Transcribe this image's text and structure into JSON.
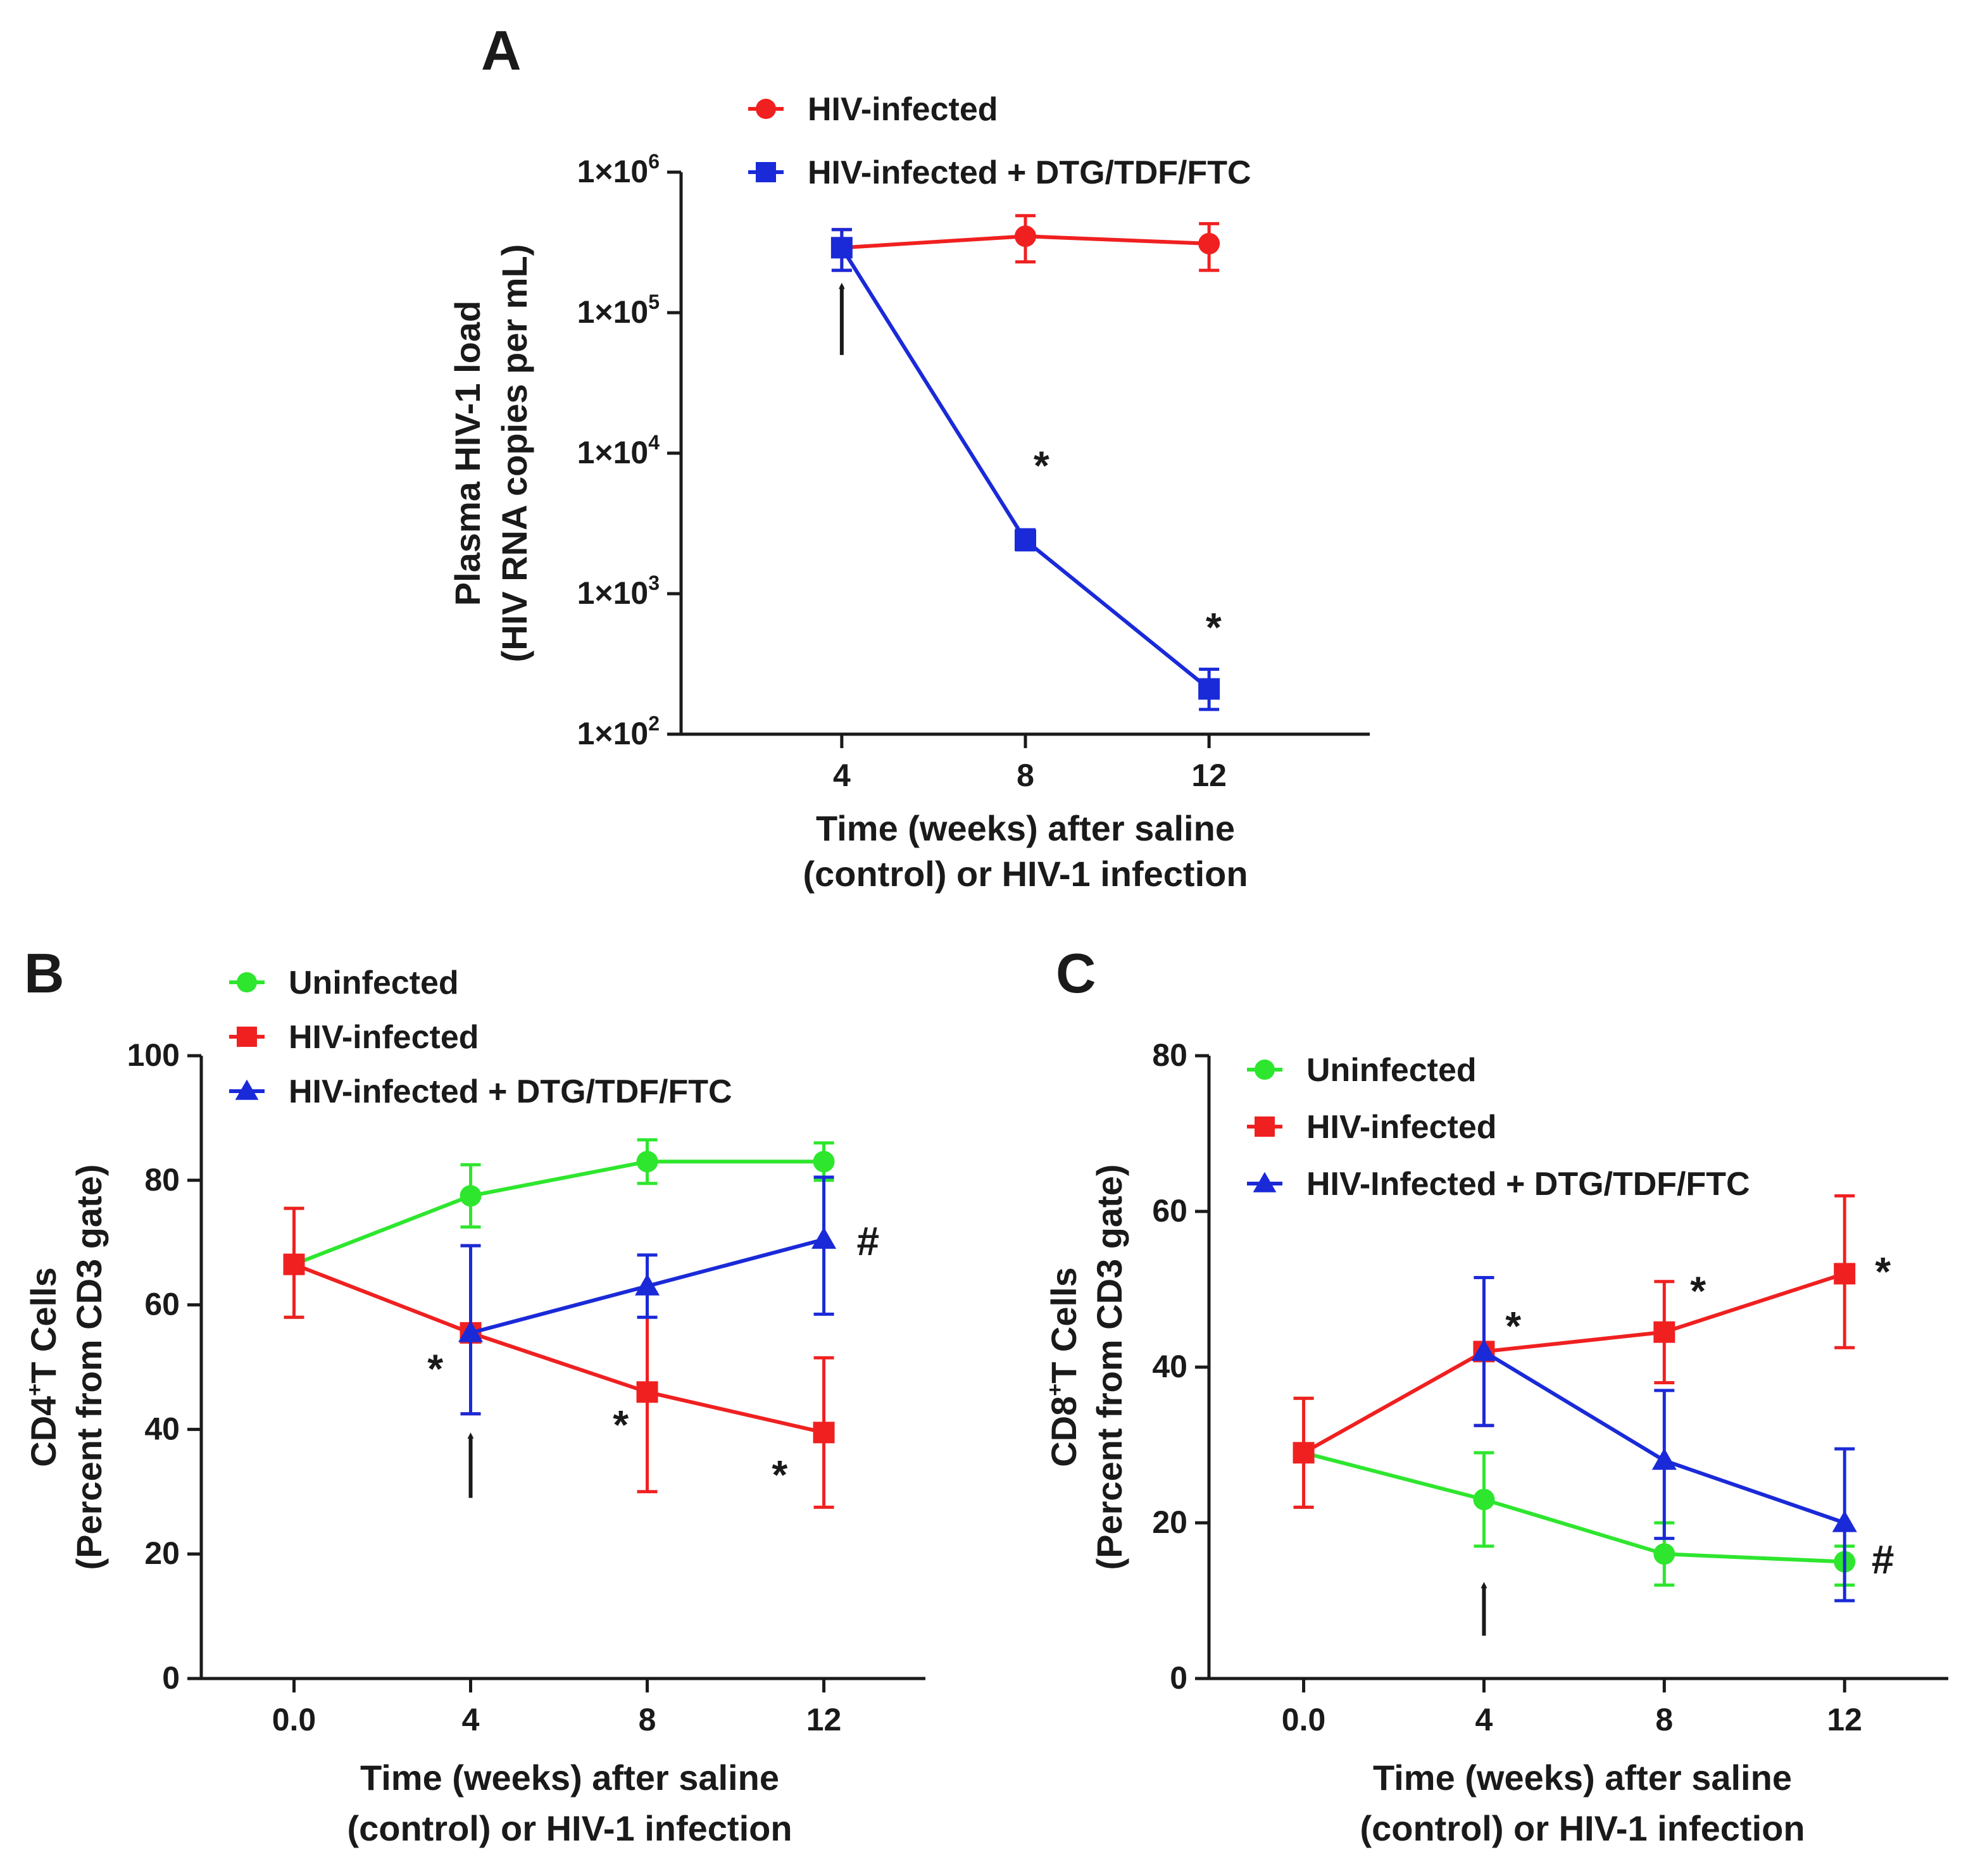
{
  "colors": {
    "green": "#2ee62e",
    "red": "#f02020",
    "blue": "#1a2ad8",
    "axis": "#1a1a1a"
  },
  "chart_data": [
    {
      "id": "A",
      "panel_label": "A",
      "type": "line",
      "yscale": "log",
      "x_ticks": [
        4,
        8,
        12
      ],
      "x_tick_labels": [
        "4",
        "8",
        "12"
      ],
      "xlim": [
        0.5,
        15.5
      ],
      "ylim": [
        100,
        1000000
      ],
      "y_ticks": [
        100,
        1000,
        10000,
        100000,
        1000000
      ],
      "y_tick_labels": [
        {
          "base": "1×10",
          "exp": "2"
        },
        {
          "base": "1×10",
          "exp": "3"
        },
        {
          "base": "1×10",
          "exp": "4"
        },
        {
          "base": "1×10",
          "exp": "5"
        },
        {
          "base": "1×10",
          "exp": "6"
        }
      ],
      "xlabel": [
        "Time (weeks) after saline",
        "(control) or HIV-1 infection"
      ],
      "ylabel": [
        "Plasma HIV-1 load",
        "(HIV RNA copies per mL)"
      ],
      "legend": [
        {
          "label": "HIV-infected",
          "color": "#f02020",
          "marker": "circle"
        },
        {
          "label": "HIV-infected + DTG/TDF/FTC",
          "color": "#1a2ad8",
          "marker": "square"
        }
      ],
      "series": [
        {
          "name": "HIV-infected",
          "color": "#f02020",
          "marker": "circle",
          "x": [
            4,
            8,
            12
          ],
          "y": [
            290000,
            350000,
            310000
          ],
          "err_low": [
            200000,
            230000,
            200000
          ],
          "err_high": [
            390000,
            490000,
            430000
          ]
        },
        {
          "name": "HIV-infected + DTG/TDF/FTC",
          "color": "#1a2ad8",
          "marker": "square",
          "x": [
            4,
            8,
            12
          ],
          "y": [
            290000,
            2400,
            210
          ],
          "err_low": [
            200000,
            2050,
            150
          ],
          "err_high": [
            390000,
            2850,
            290
          ]
        }
      ],
      "annotations": [
        {
          "text": "*",
          "x": 8.35,
          "y": 6500
        },
        {
          "text": "*",
          "x": 12.1,
          "y": 460
        }
      ],
      "arrows": [
        {
          "x": 4,
          "from_y": 50000,
          "to_y": 155000
        }
      ]
    },
    {
      "id": "B",
      "panel_label": "B",
      "type": "line",
      "yscale": "linear",
      "x_ticks": [
        0,
        4,
        8,
        12
      ],
      "x_tick_labels": [
        "0.0",
        "4",
        "8",
        "12"
      ],
      "xlim": [
        -2.1,
        14.3
      ],
      "ylim": [
        0,
        100
      ],
      "y_ticks": [
        0,
        20,
        40,
        60,
        80,
        100
      ],
      "y_tick_labels": [
        "0",
        "20",
        "40",
        "60",
        "80",
        "100"
      ],
      "xlabel": [
        "Time (weeks) after saline",
        "(control) or HIV-1 infection"
      ],
      "ylabel": {
        "line1_pre": "CD4",
        "line1_sup": "+",
        "line1_post": "T Cells",
        "line2": "(Percent from CD3 gate)"
      },
      "legend": [
        {
          "label": "Uninfected",
          "color": "#2ee62e",
          "marker": "circle"
        },
        {
          "label": "HIV-infected",
          "color": "#f02020",
          "marker": "square"
        },
        {
          "label": "HIV-infected + DTG/TDF/FTC",
          "color": "#1a2ad8",
          "marker": "triangle"
        }
      ],
      "series": [
        {
          "name": "Uninfected",
          "color": "#2ee62e",
          "marker": "circle",
          "x": [
            0,
            4,
            8,
            12
          ],
          "y": [
            66.5,
            77.5,
            83,
            83
          ],
          "err_low": [
            58,
            72.5,
            79.5,
            80
          ],
          "err_high": [
            75.5,
            82.5,
            86.5,
            86
          ]
        },
        {
          "name": "HIV-infected",
          "color": "#f02020",
          "marker": "square",
          "x": [
            0,
            4,
            8,
            12
          ],
          "y": [
            66.5,
            55.5,
            46,
            39.5
          ],
          "err_low": [
            58,
            42.5,
            30,
            27.5
          ],
          "err_high": [
            75.5,
            69.5,
            62,
            51.5
          ]
        },
        {
          "name": "HIV-infected + DTG/TDF/FTC",
          "color": "#1a2ad8",
          "marker": "triangle",
          "x": [
            4,
            8,
            12
          ],
          "y": [
            55.5,
            63,
            70.5
          ],
          "err_low": [
            42.5,
            58,
            58.5
          ],
          "err_high": [
            69.5,
            68,
            80.5
          ]
        }
      ],
      "annotations": [
        {
          "text": "*",
          "x": 3.2,
          "y": 47.5
        },
        {
          "text": "*",
          "x": 7.4,
          "y": 38.5
        },
        {
          "text": "*",
          "x": 11.0,
          "y": 30.5
        },
        {
          "text": "#",
          "x": 13.0,
          "y": 68
        }
      ],
      "arrows": [
        {
          "x": 4,
          "from_y": 29,
          "to_y": 39
        }
      ]
    },
    {
      "id": "C",
      "panel_label": "C",
      "type": "line",
      "yscale": "linear",
      "x_ticks": [
        0,
        4,
        8,
        12
      ],
      "x_tick_labels": [
        "0.0",
        "4",
        "8",
        "12"
      ],
      "xlim": [
        -2.1,
        14.3
      ],
      "ylim": [
        0,
        80
      ],
      "y_ticks": [
        0,
        20,
        40,
        60,
        80
      ],
      "y_tick_labels": [
        "0",
        "20",
        "40",
        "60",
        "80"
      ],
      "xlabel": [
        "Time (weeks) after saline",
        "(control) or HIV-1 infection"
      ],
      "ylabel": {
        "line1_pre": "CD8",
        "line1_sup": "+",
        "line1_post": "T Cells",
        "line2": "(Percent from CD3 gate)"
      },
      "legend": [
        {
          "label": "Uninfected",
          "color": "#2ee62e",
          "marker": "circle"
        },
        {
          "label": "HIV-infected",
          "color": "#f02020",
          "marker": "square"
        },
        {
          "label": "HIV-Infected + DTG/TDF/FTC",
          "color": "#1a2ad8",
          "marker": "triangle"
        }
      ],
      "series": [
        {
          "name": "Uninfected",
          "color": "#2ee62e",
          "marker": "circle",
          "x": [
            0,
            4,
            8,
            12
          ],
          "y": [
            29,
            23,
            16,
            15
          ],
          "err_low": [
            22,
            17,
            12,
            12
          ],
          "err_high": [
            36,
            29,
            20,
            17
          ]
        },
        {
          "name": "HIV-infected",
          "color": "#f02020",
          "marker": "square",
          "x": [
            0,
            4,
            8,
            12
          ],
          "y": [
            29,
            42,
            44.5,
            52
          ],
          "err_low": [
            22,
            32.5,
            38,
            42.5
          ],
          "err_high": [
            36,
            51.5,
            51,
            62
          ]
        },
        {
          "name": "HIV-Infected + DTG/TDF/FTC",
          "color": "#1a2ad8",
          "marker": "triangle",
          "x": [
            4,
            8,
            12
          ],
          "y": [
            42,
            28,
            20
          ],
          "err_low": [
            32.5,
            18,
            10
          ],
          "err_high": [
            51.5,
            37,
            29.5
          ]
        }
      ],
      "annotations": [
        {
          "text": "*",
          "x": 4.65,
          "y": 43.5
        },
        {
          "text": "*",
          "x": 8.75,
          "y": 48
        },
        {
          "text": "*",
          "x": 12.85,
          "y": 50.5
        },
        {
          "text": "#",
          "x": 12.85,
          "y": 13.5
        }
      ],
      "arrows": [
        {
          "x": 4,
          "from_y": 5.5,
          "to_y": 12
        }
      ]
    }
  ]
}
